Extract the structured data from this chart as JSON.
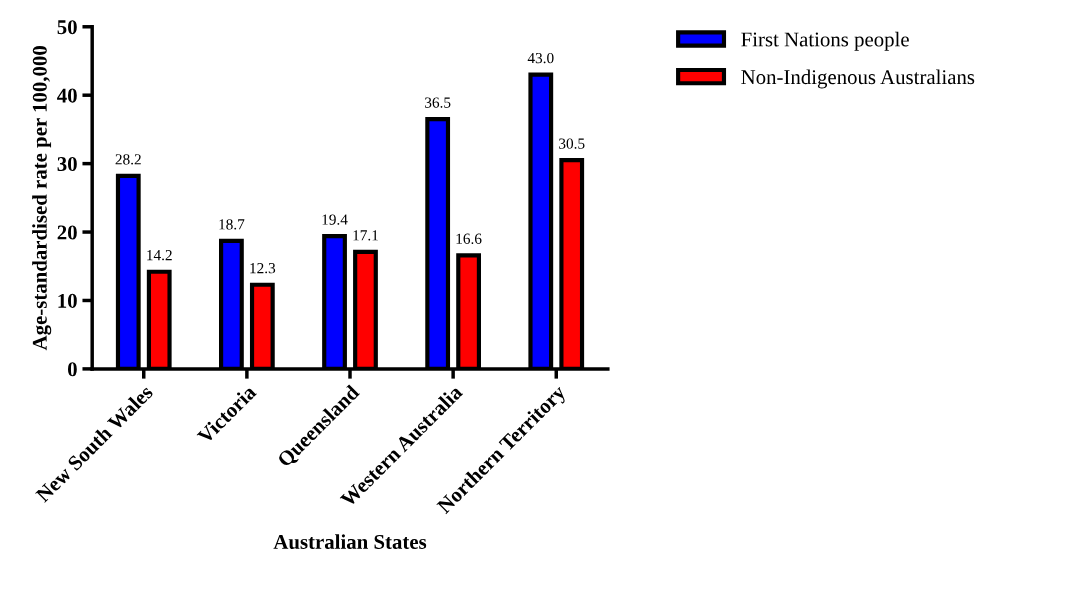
{
  "chart_data": {
    "type": "bar",
    "xlabel": "Australian States",
    "ylabel": "Age-standardised rate per 100,000",
    "categories": [
      "New South Wales",
      "Victoria",
      "Queensland",
      "Western Australia",
      "Northern Territory"
    ],
    "series": [
      {
        "name": "First Nations people",
        "color": "#0000ff",
        "values": [
          28.2,
          18.7,
          19.4,
          36.5,
          43.0
        ],
        "value_labels": [
          "28.2",
          "18.7",
          "19.4",
          "36.5",
          "43.0"
        ]
      },
      {
        "name": "Non-Indigenous Australians",
        "color": "#ff0000",
        "values": [
          14.2,
          12.3,
          17.1,
          16.6,
          30.5
        ],
        "value_labels": [
          "14.2",
          "12.3",
          "17.1",
          "16.6",
          "30.5"
        ]
      }
    ],
    "ylim": [
      0,
      50
    ],
    "yticks": [
      0,
      10,
      20,
      30,
      40,
      50
    ],
    "grid": false,
    "legend": "top right"
  }
}
